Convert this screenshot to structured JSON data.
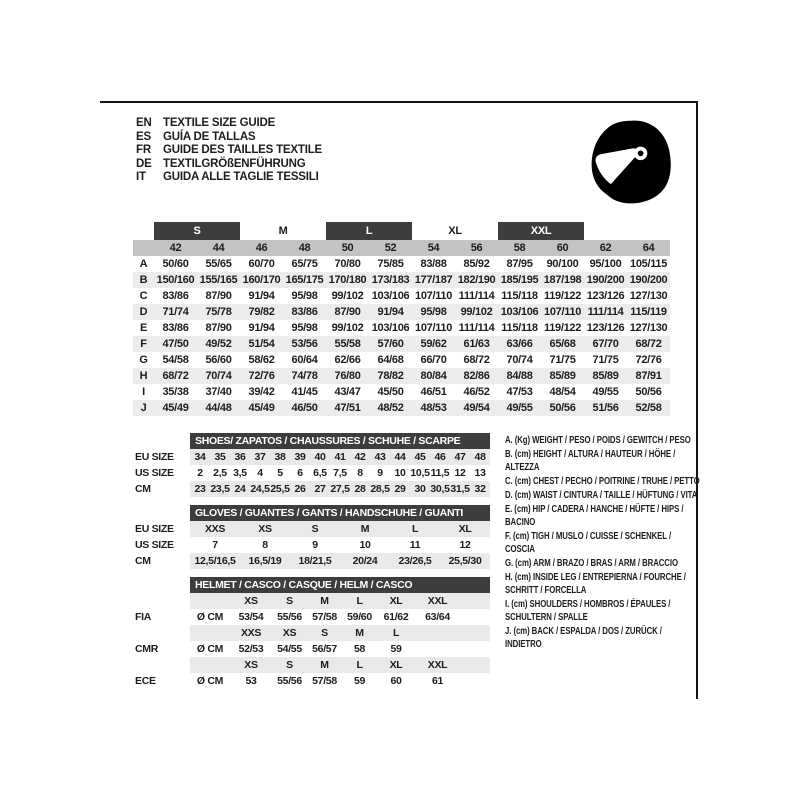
{
  "header": {
    "languages": [
      {
        "code": "EN",
        "text": "TEXTILE SIZE GUIDE"
      },
      {
        "code": "ES",
        "text": "GUÍA DE TALLAS"
      },
      {
        "code": "FR",
        "text": "GUIDE DES TAILLES TEXTILE"
      },
      {
        "code": "DE",
        "text": "TEXTILGRÖßENFÜHRUNG"
      },
      {
        "code": "IT",
        "text": "GUIDA ALLE TAGLIE TESSILI"
      }
    ],
    "icon": "racing-helmet"
  },
  "colors": {
    "band_dark": "#3d3d3d",
    "band_gray": "#c3c3c3",
    "stripe_gray": "#ececec",
    "text": "#1d1d1d"
  },
  "main_table": {
    "size_groups": [
      {
        "label": "S",
        "dark": true
      },
      {
        "label": "M",
        "dark": false
      },
      {
        "label": "L",
        "dark": true
      },
      {
        "label": "XL",
        "dark": false
      },
      {
        "label": "XXL",
        "dark": true
      }
    ],
    "columns": [
      "42",
      "44",
      "46",
      "48",
      "50",
      "52",
      "54",
      "56",
      "58",
      "60",
      "62",
      "64"
    ],
    "rows": [
      {
        "label": "A",
        "values": [
          "50/60",
          "55/65",
          "60/70",
          "65/75",
          "70/80",
          "75/85",
          "83/88",
          "85/92",
          "87/95",
          "90/100",
          "95/100",
          "105/115"
        ]
      },
      {
        "label": "B",
        "values": [
          "150/160",
          "155/165",
          "160/170",
          "165/175",
          "170/180",
          "173/183",
          "177/187",
          "182/190",
          "185/195",
          "187/198",
          "190/200",
          "190/200"
        ]
      },
      {
        "label": "C",
        "values": [
          "83/86",
          "87/90",
          "91/94",
          "95/98",
          "99/102",
          "103/106",
          "107/110",
          "111/114",
          "115/118",
          "119/122",
          "123/126",
          "127/130"
        ]
      },
      {
        "label": "D",
        "values": [
          "71/74",
          "75/78",
          "79/82",
          "83/86",
          "87/90",
          "91/94",
          "95/98",
          "99/102",
          "103/106",
          "107/110",
          "111/114",
          "115/119"
        ]
      },
      {
        "label": "E",
        "values": [
          "83/86",
          "87/90",
          "91/94",
          "95/98",
          "99/102",
          "103/106",
          "107/110",
          "111/114",
          "115/118",
          "119/122",
          "123/126",
          "127/130"
        ]
      },
      {
        "label": "F",
        "values": [
          "47/50",
          "49/52",
          "51/54",
          "53/56",
          "55/58",
          "57/60",
          "59/62",
          "61/63",
          "63/66",
          "65/68",
          "67/70",
          "68/72"
        ]
      },
      {
        "label": "G",
        "values": [
          "54/58",
          "56/60",
          "58/62",
          "60/64",
          "62/66",
          "64/68",
          "66/70",
          "68/72",
          "70/74",
          "71/75",
          "71/75",
          "72/76"
        ]
      },
      {
        "label": "H",
        "values": [
          "68/72",
          "70/74",
          "72/76",
          "74/78",
          "76/80",
          "78/82",
          "80/84",
          "82/86",
          "84/88",
          "85/89",
          "85/89",
          "87/91"
        ]
      },
      {
        "label": "I",
        "values": [
          "35/38",
          "37/40",
          "39/42",
          "41/45",
          "43/47",
          "45/50",
          "46/51",
          "46/52",
          "47/53",
          "48/54",
          "49/55",
          "50/56"
        ]
      },
      {
        "label": "J",
        "values": [
          "45/49",
          "44/48",
          "45/49",
          "46/50",
          "47/51",
          "48/52",
          "48/53",
          "49/54",
          "49/55",
          "50/56",
          "51/56",
          "52/58"
        ]
      }
    ]
  },
  "shoes_table": {
    "title": "SHOES/ ZAPATOS / CHAUSSURES / SCHUHE / SCARPE",
    "rows": [
      {
        "label": "EU SIZE",
        "shaded": true,
        "cells": [
          "34",
          "35",
          "36",
          "37",
          "38",
          "39",
          "40",
          "41",
          "42",
          "43",
          "44",
          "45",
          "46",
          "47",
          "48"
        ]
      },
      {
        "label": "US SIZE",
        "shaded": false,
        "cells": [
          "2",
          "2,5",
          "3,5",
          "4",
          "5",
          "6",
          "6,5",
          "7,5",
          "8",
          "9",
          "10",
          "10,5",
          "11,5",
          "12",
          "13"
        ]
      },
      {
        "label": "CM",
        "shaded": true,
        "cells": [
          "23",
          "23,5",
          "24",
          "24,5",
          "25,5",
          "26",
          "27",
          "27,5",
          "28",
          "28,5",
          "29",
          "30",
          "30,5",
          "31,5",
          "32"
        ]
      }
    ]
  },
  "gloves_table": {
    "title": "GLOVES / GUANTES / GANTS / HANDSCHUHE / GUANTI",
    "rows": [
      {
        "label": "EU SIZE",
        "shaded": true,
        "cells": [
          "XXS",
          "XS",
          "S",
          "M",
          "L",
          "XL"
        ]
      },
      {
        "label": "US SIZE",
        "shaded": false,
        "cells": [
          "7",
          "8",
          "9",
          "10",
          "11",
          "12"
        ]
      },
      {
        "label": "CM",
        "shaded": true,
        "cells": [
          "12,5/16,5",
          "16,5/19",
          "18/21,5",
          "20/24",
          "23/26,5",
          "25,5/30"
        ]
      }
    ]
  },
  "helmet_table": {
    "title": "HELMET / CASCO / CASQUE / HELM / CASCO",
    "rows": [
      {
        "label": "",
        "shaded": true,
        "cells": [
          "",
          "XS",
          "S",
          "M",
          "L",
          "XL",
          "XXL",
          ""
        ]
      },
      {
        "label": "FIA",
        "shaded": false,
        "cells": [
          "Ø CM",
          "53/54",
          "55/56",
          "57/58",
          "59/60",
          "61/62",
          "63/64",
          ""
        ]
      },
      {
        "label": "",
        "shaded": true,
        "cells": [
          "",
          "XXS",
          "XS",
          "S",
          "M",
          "L",
          "",
          ""
        ]
      },
      {
        "label": "CMR",
        "shaded": false,
        "cells": [
          "Ø CM",
          "52/53",
          "54/55",
          "56/57",
          "58",
          "59",
          "",
          ""
        ]
      },
      {
        "label": "",
        "shaded": true,
        "cells": [
          "",
          "XS",
          "S",
          "M",
          "L",
          "XL",
          "XXL",
          ""
        ]
      },
      {
        "label": "ECE",
        "shaded": false,
        "cells": [
          "Ø CM",
          "53",
          "55/56",
          "57/58",
          "59",
          "60",
          "61",
          ""
        ]
      }
    ]
  },
  "legend": {
    "items": [
      "A. (Kg) WEIGHT / PESO / POIDS / GEWITCH / PESO",
      "B. (cm) HEIGHT / ALTURA / HAUTEUR / HÖHE / ALTEZZA",
      "C. (cm) CHEST / PECHO / POITRINE / TRUHE / PETTO",
      "D. (cm) WAIST / CINTURA / TAILLE / HÜFTUNG / VITA",
      "E. (cm) HIP / CADERA / HANCHE / HÜFTE / HIPS / BACINO",
      "F. (cm) TIGH / MUSLO / CUISSE / SCHENKEL / COSCIA",
      "G. (cm) ARM / BRAZO / BRAS / ARM / BRACCIO",
      "H. (cm) INSIDE LEG / ENTREPIERNA / FOURCHE / SCHRITT / FORCELLA",
      "I. (cm) SHOULDERS / HOMBROS / ÉPAULES / SCHULTERN / SPALLE",
      "J. (cm) BACK / ESPALDA / DOS / ZURÜCK / INDIETRO"
    ]
  }
}
